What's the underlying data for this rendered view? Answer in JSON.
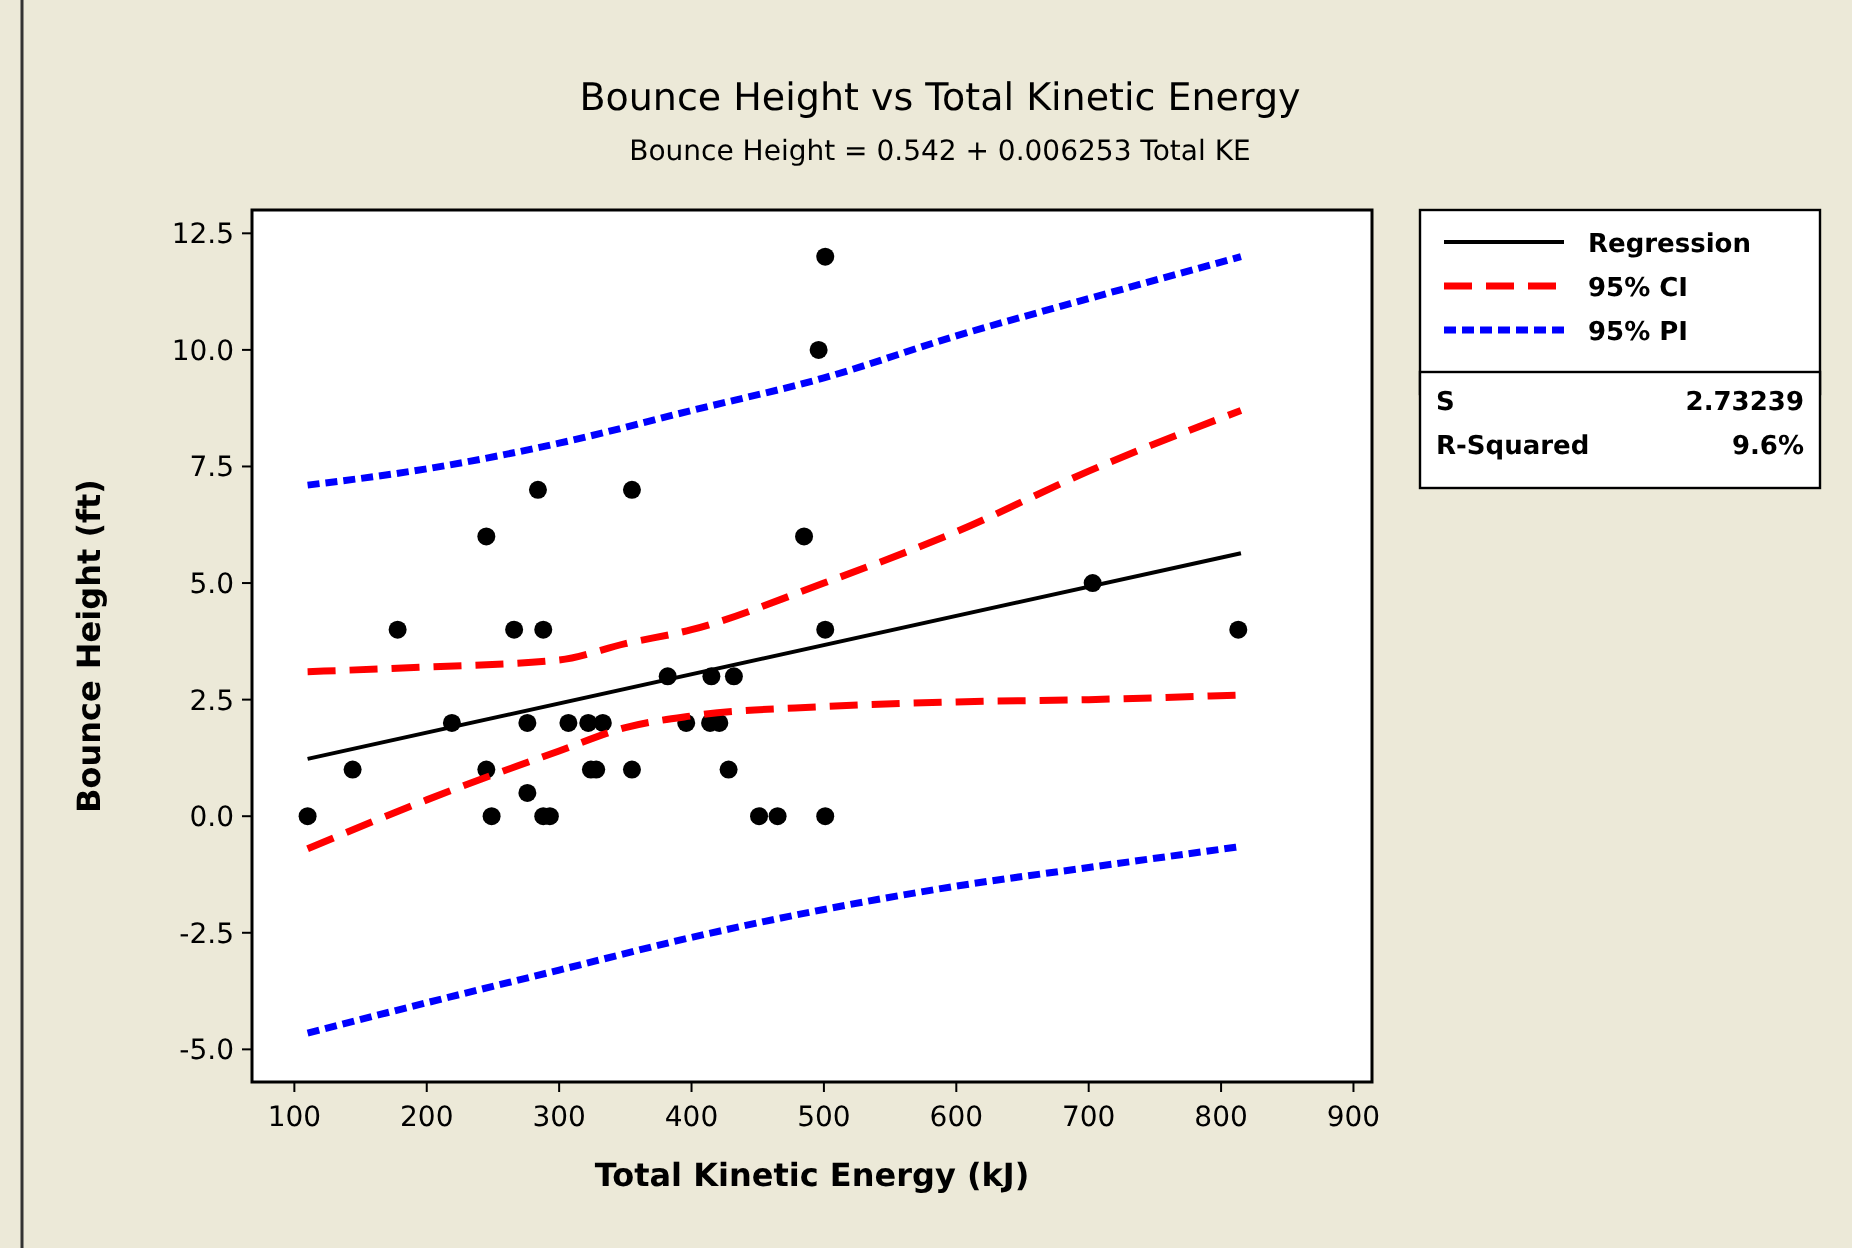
{
  "chart_data": {
    "type": "scatter",
    "title": "Bounce Height vs Total Kinetic Energy",
    "subtitle": "Bounce Height =  0.542 + 0.006253 Total KE",
    "xlabel": "Total Kinetic Energy (kJ)",
    "ylabel": "Bounce Height (ft)",
    "xlim": [
      68,
      914
    ],
    "ylim": [
      -5.7,
      13.0
    ],
    "xticks": [
      100,
      200,
      300,
      400,
      500,
      600,
      700,
      800,
      900
    ],
    "yticks": [
      {
        "value": -5,
        "label": "-5.0"
      },
      {
        "value": -2.5,
        "label": "-2.5"
      },
      {
        "value": 0,
        "label": "0.0"
      },
      {
        "value": 2.5,
        "label": "2.5"
      },
      {
        "value": 5,
        "label": "5.0"
      },
      {
        "value": 7.5,
        "label": "7.5"
      },
      {
        "value": 10,
        "label": "10.0"
      },
      {
        "value": 12.5,
        "label": "12.5"
      }
    ],
    "grid": false,
    "legend": "right",
    "annotations": [
      "S",
      "2.73239",
      "R-Squared",
      "9.6%"
    ],
    "series": [
      {
        "type": "scatter",
        "color": "#000000",
        "marker": "circle",
        "x": [
          110,
          144,
          178,
          219,
          245,
          245,
          249,
          266,
          276,
          276,
          284,
          288,
          288,
          293,
          307,
          322,
          324,
          328,
          333,
          355,
          355,
          382,
          396,
          414,
          415,
          421,
          428,
          432,
          451,
          465,
          485,
          496,
          501,
          501,
          501,
          703,
          813
        ],
        "values": [
          0,
          1,
          4,
          2,
          6,
          1,
          0,
          4,
          2,
          0.5,
          7,
          4,
          0,
          0,
          2,
          2,
          1,
          1,
          2,
          7,
          1,
          3,
          2,
          2,
          3,
          2,
          1,
          3,
          0,
          0,
          6,
          10,
          12,
          4,
          0,
          5,
          4
        ]
      },
      {
        "type": "line",
        "name": "Regression",
        "color": "#000000",
        "line_style": "solid",
        "marker": "none",
        "x": [
          110,
          815
        ],
        "values": [
          1.23,
          5.64
        ]
      },
      {
        "type": "line",
        "name": "95% CI",
        "color": "#ff0000",
        "line_style": "dashed",
        "marker": "none",
        "x": [
          110,
          200,
          300,
          350,
          400,
          500,
          600,
          700,
          815
        ],
        "values": [
          3.1,
          3.2,
          3.35,
          3.7,
          4.0,
          5.0,
          6.1,
          7.4,
          8.7
        ]
      },
      {
        "type": "line",
        "color": "#ff0000",
        "line_style": "dashed",
        "marker": "none",
        "x": [
          110,
          200,
          300,
          350,
          400,
          500,
          600,
          700,
          815
        ],
        "values": [
          -0.7,
          0.35,
          1.4,
          1.9,
          2.15,
          2.35,
          2.45,
          2.5,
          2.6
        ]
      },
      {
        "type": "line",
        "name": "95% PI",
        "color": "#0000ff",
        "line_style": "dotted",
        "marker": "none",
        "x": [
          110,
          200,
          300,
          400,
          500,
          600,
          700,
          815
        ],
        "values": [
          7.1,
          7.45,
          8.0,
          8.7,
          9.4,
          10.3,
          11.1,
          12.0
        ]
      },
      {
        "type": "line",
        "color": "#0000ff",
        "line_style": "dotted",
        "marker": "none",
        "x": [
          110,
          200,
          300,
          400,
          500,
          600,
          700,
          815
        ],
        "values": [
          -4.65,
          -4.0,
          -3.3,
          -2.6,
          -2.0,
          -1.5,
          -1.1,
          -0.65
        ]
      }
    ]
  }
}
